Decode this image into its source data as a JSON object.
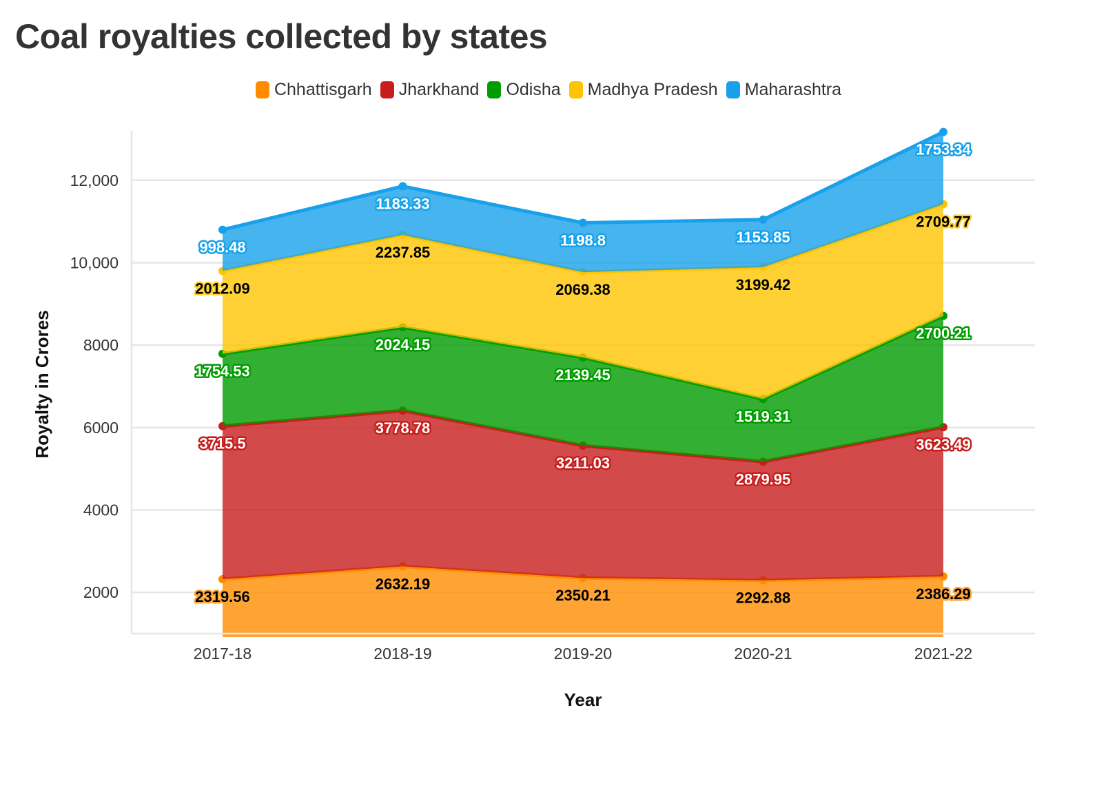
{
  "chart_data": {
    "type": "area",
    "stacked": true,
    "title": "Coal royalties collected by states",
    "xlabel": "Year",
    "ylabel": "Royalty in Crores",
    "categories": [
      "2017-18",
      "2018-19",
      "2019-20",
      "2020-21",
      "2021-22"
    ],
    "ylim": [
      1000,
      13200
    ],
    "y_ticks": [
      2000,
      4000,
      6000,
      8000,
      10000,
      12000
    ],
    "y_tick_labels": [
      "2000",
      "4000",
      "6000",
      "8000",
      "10,000",
      "12,000"
    ],
    "grid": true,
    "legend_position": "top-center",
    "series": [
      {
        "name": "Chhattisgarh",
        "color": "#ff8c00",
        "label_color": "#000000",
        "halo_color": "#ffa534",
        "values": [
          2319.56,
          2632.19,
          2350.21,
          2292.88,
          2386.29
        ],
        "labels": [
          "2319.56",
          "2632.19",
          "2350.21",
          "2292.88",
          "2386.29"
        ]
      },
      {
        "name": "Jharkhand",
        "color": "#c71e1d",
        "label_color": "#ffffff",
        "halo_color": "#c71e1d",
        "values": [
          3715.5,
          3778.78,
          3211.03,
          2879.95,
          3623.49
        ],
        "labels": [
          "3715.5",
          "3778.78",
          "3211.03",
          "2879.95",
          "3623.49"
        ]
      },
      {
        "name": "Odisha",
        "color": "#009c00",
        "label_color": "#ffffff",
        "halo_color": "#009c00",
        "values": [
          1754.53,
          2024.15,
          2139.45,
          1519.31,
          2700.21
        ],
        "labels": [
          "1754.53",
          "2024.15",
          "2139.45",
          "1519.31",
          "2700.21"
        ]
      },
      {
        "name": "Madhya Pradesh",
        "color": "#ffc400",
        "label_color": "#000000",
        "halo_color": "#ffd234",
        "values": [
          2012.09,
          2237.85,
          2069.38,
          3199.42,
          2709.77
        ],
        "labels": [
          "2012.09",
          "2237.85",
          "2069.38",
          "3199.42",
          "2709.77"
        ]
      },
      {
        "name": "Maharashtra",
        "color": "#18a1ea",
        "label_color": "#ffffff",
        "halo_color": "#18a1ea",
        "values": [
          998.48,
          1183.33,
          1198.8,
          1153.85,
          1753.34
        ],
        "labels": [
          "998.48",
          "1183.33",
          "1198.8",
          "1153.85",
          "1753.34"
        ]
      }
    ]
  }
}
